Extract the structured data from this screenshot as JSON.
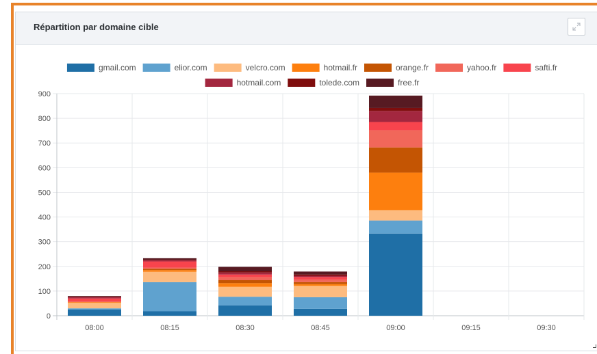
{
  "panel": {
    "title": "Répartition par domaine cible",
    "expand_icon": "expand-icon"
  },
  "colors": {
    "accent_border": "#e8832a"
  },
  "chart_data": {
    "type": "bar",
    "stacked": true,
    "categories": [
      "08:00",
      "08:15",
      "08:30",
      "08:45",
      "09:00",
      "09:15",
      "09:30"
    ],
    "ylim": [
      0,
      900
    ],
    "yticks": [
      0,
      100,
      200,
      300,
      400,
      500,
      600,
      700,
      800,
      900
    ],
    "grid": true,
    "legend_position": "top",
    "series": [
      {
        "name": "gmail.com",
        "color": "#1f6fa6",
        "values": [
          25,
          18,
          42,
          28,
          333,
          0,
          0
        ]
      },
      {
        "name": "elior.com",
        "color": "#5fa2cf",
        "values": [
          5,
          118,
          35,
          47,
          53,
          0,
          0
        ]
      },
      {
        "name": "velcro.com",
        "color": "#fdbb7f",
        "values": [
          22,
          42,
          40,
          46,
          42,
          0,
          0
        ]
      },
      {
        "name": "hotmail.fr",
        "color": "#fd7f0e",
        "values": [
          3,
          7,
          15,
          7,
          152,
          0,
          0
        ]
      },
      {
        "name": "orange.fr",
        "color": "#c45503",
        "values": [
          0,
          5,
          12,
          8,
          102,
          0,
          0
        ]
      },
      {
        "name": "yahoo.fr",
        "color": "#f1675a",
        "values": [
          3,
          5,
          12,
          10,
          70,
          0,
          0
        ]
      },
      {
        "name": "safti.fr",
        "color": "#f8444d",
        "values": [
          12,
          25,
          11,
          11,
          33,
          0,
          0
        ]
      },
      {
        "name": "hotmail.com",
        "color": "#a3273f",
        "values": [
          5,
          5,
          8,
          5,
          45,
          0,
          0
        ]
      },
      {
        "name": "tolede.com",
        "color": "#7f0d0d",
        "values": [
          2,
          2,
          5,
          5,
          12,
          0,
          0
        ]
      },
      {
        "name": "free.fr",
        "color": "#571a22",
        "values": [
          3,
          6,
          18,
          12,
          50,
          0,
          0
        ]
      }
    ]
  }
}
